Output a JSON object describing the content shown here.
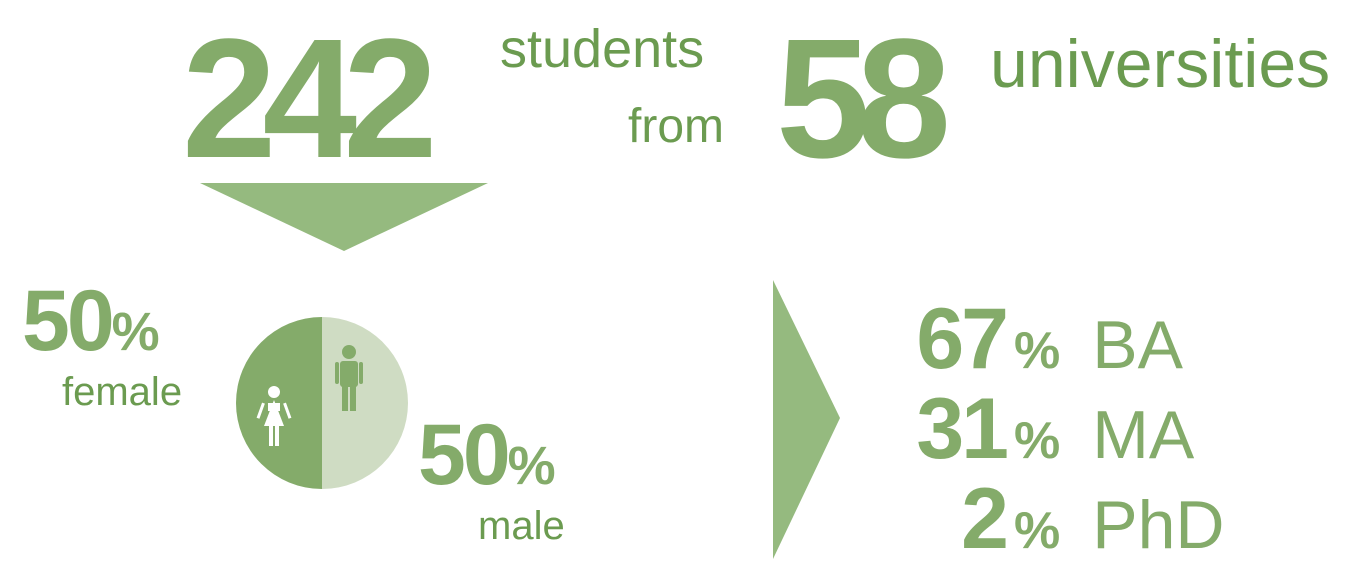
{
  "headline": {
    "students_count": "242",
    "students_word": "students",
    "from_word": "from",
    "universities_count": "58",
    "universities_word": "universities"
  },
  "gender": {
    "female_value": "50",
    "female_unit": "%",
    "female_label": "female",
    "male_value": "50",
    "male_unit": "%",
    "male_label": "male",
    "female_share": 0.5,
    "male_share": 0.5
  },
  "degrees": [
    {
      "value": "67",
      "unit": "%",
      "label": "BA"
    },
    {
      "value": "31",
      "unit": "%",
      "label": "MA"
    },
    {
      "value": "2",
      "unit": "%",
      "label": "PhD"
    }
  ],
  "colors": {
    "primary": "#84ab6a",
    "dark": "#6b9b50",
    "light": "#cfdcc3",
    "arrow": "#95ba7f"
  },
  "icons": {
    "female": "female-person-icon",
    "male": "male-person-icon",
    "down_arrow": "down-arrow-icon",
    "right_arrow": "right-arrow-icon"
  }
}
